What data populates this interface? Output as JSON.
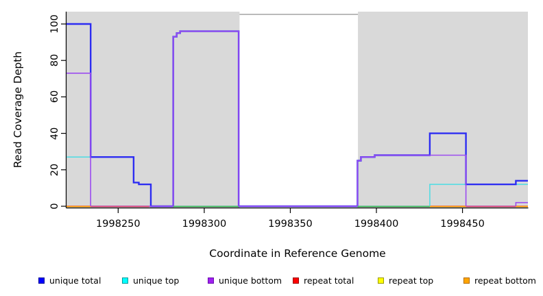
{
  "chart_data": {
    "type": "line",
    "step": true,
    "title": "",
    "xlabel": "Coordinate in Reference Genome",
    "ylabel": "Read Coverage Depth",
    "xlim": [
      1998220,
      1998488
    ],
    "ylim": [
      0,
      100
    ],
    "x_ticks": [
      "1998250",
      "1998300",
      "1998350",
      "1998400",
      "1998450"
    ],
    "y_ticks": [
      "0",
      "20",
      "40",
      "60",
      "80",
      "100"
    ],
    "grid": false,
    "legend_position": "bottom",
    "panel_color": "#d9d9d9",
    "gap_region": {
      "from": 1998320.5,
      "to": 1998389.3,
      "fill": "#ffffff",
      "top_border_color": "#a3a3a3"
    },
    "background_panels": [
      {
        "from": 1998220,
        "to": 1998320.5
      },
      {
        "from": 1998389.3,
        "to": 1998488
      }
    ],
    "series": [
      {
        "name": "unique total",
        "color": "#2d2df2",
        "width": 2.4,
        "points": [
          [
            1998220,
            100
          ],
          [
            1998234,
            27
          ],
          [
            1998259,
            13
          ],
          [
            1998262,
            12
          ],
          [
            1998269,
            0
          ],
          [
            1998282,
            93
          ],
          [
            1998284,
            95
          ],
          [
            1998286,
            96
          ],
          [
            1998320,
            0
          ],
          [
            1998389,
            25
          ],
          [
            1998391,
            27
          ],
          [
            1998399,
            28
          ],
          [
            1998431,
            40
          ],
          [
            1998452,
            12
          ],
          [
            1998481,
            14
          ],
          [
            1998488,
            14
          ]
        ]
      },
      {
        "name": "unique top",
        "color": "#55dce2",
        "width": 1.6,
        "points": [
          [
            1998220,
            27
          ],
          [
            1998259,
            13
          ],
          [
            1998262,
            12
          ],
          [
            1998269,
            0
          ],
          [
            1998431,
            12
          ],
          [
            1998488,
            12
          ]
        ]
      },
      {
        "name": "unique bottom",
        "color": "#9b4cf0",
        "width": 1.6,
        "points": [
          [
            1998220,
            73
          ],
          [
            1998234,
            0
          ],
          [
            1998282,
            93
          ],
          [
            1998284,
            95
          ],
          [
            1998286,
            96
          ],
          [
            1998320,
            0
          ],
          [
            1998389,
            25
          ],
          [
            1998391,
            27
          ],
          [
            1998399,
            28
          ],
          [
            1998452,
            0
          ],
          [
            1998481,
            2
          ],
          [
            1998488,
            2
          ]
        ]
      },
      {
        "name": "repeat total",
        "color": "#e04a70",
        "width": 1.4,
        "points": [
          [
            1998220,
            0
          ],
          [
            1998488,
            0
          ]
        ]
      },
      {
        "name": "repeat top",
        "color": "#f0e030",
        "width": 1.4,
        "points": [
          [
            1998220,
            0
          ],
          [
            1998488,
            0
          ]
        ]
      },
      {
        "name": "repeat bottom",
        "color": "#ffa500",
        "width": 1.6,
        "points": [
          [
            1998220,
            0
          ],
          [
            1998488,
            0
          ]
        ]
      }
    ],
    "draw_order": [
      "repeat top",
      "repeat bottom",
      "repeat total",
      "unique top",
      "unique total",
      "unique bottom"
    ],
    "baseline_segments": [
      {
        "from": 1998220,
        "to": 1998234,
        "color": "#ffa500",
        "series": "repeat bottom"
      },
      {
        "from": 1998234,
        "to": 1998268,
        "color": "#e04a70",
        "series": "repeat total"
      },
      {
        "from": 1998282,
        "to": 1998320,
        "color": "#3db954",
        "series": "zero-coverage"
      },
      {
        "from": 1998389,
        "to": 1998431,
        "color": "#3db954",
        "series": "zero-coverage"
      },
      {
        "from": 1998431,
        "to": 1998452,
        "color": "#ffa500",
        "series": "repeat bottom"
      },
      {
        "from": 1998452,
        "to": 1998481,
        "color": "#e04a70",
        "series": "repeat total"
      },
      {
        "from": 1998481,
        "to": 1998488,
        "color": "#ffa500",
        "series": "repeat bottom"
      }
    ],
    "legend": [
      {
        "label": "unique total",
        "fill": "#0000ff",
        "border": "#000099"
      },
      {
        "label": "unique top",
        "fill": "#00ffff",
        "border": "#009999"
      },
      {
        "label": "unique bottom",
        "fill": "#a020f0",
        "border": "#6a0dad"
      },
      {
        "label": "repeat total",
        "fill": "#ff0000",
        "border": "#990000"
      },
      {
        "label": "repeat top",
        "fill": "#ffff00",
        "border": "#999900"
      },
      {
        "label": "repeat bottom",
        "fill": "#ffa500",
        "border": "#b36b00"
      }
    ],
    "axis_color": "#000000"
  }
}
